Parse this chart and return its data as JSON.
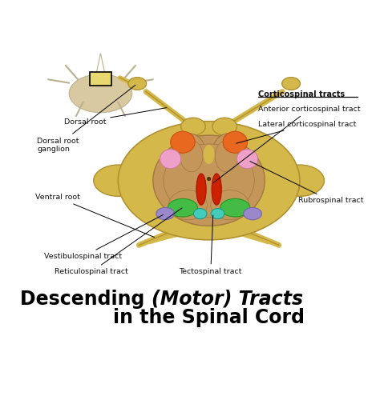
{
  "bg_color": "#ffffff",
  "title_line1": "Descending ",
  "title_motor": "(Motor)",
  "title_line1_end": " Tracts",
  "title_line2": "in the Spinal Cord",
  "title_fontsize": 20,
  "labels": {
    "corticospinal_bold": "Corticospinal tracts",
    "anterior_corticospinal": "Anterior corticospinal tract",
    "lateral_corticospinal": "Lateral corticospinal tract",
    "dorsal_root": "Dorsal root",
    "dorsal_root_ganglion": "Dorsal root\nganglion",
    "ventral_root": "Ventral root",
    "rubrospinal": "Rubrospinal tract",
    "vestibulospinal": "Vestibulospinal tract",
    "reticulospinal": "Reticulospinal tract",
    "tectospinal": "Tectospinal tract"
  },
  "colors": {
    "spinal_cord_outer": "#D4B94A",
    "spinal_cord_inner": "#C4965A",
    "outer_edge": "#B09030",
    "inner_edge": "#A07840",
    "orange_blob": "#E86820",
    "orange_edge": "#CC5010",
    "pink_blob": "#EFA0C8",
    "pink_edge": "#CC80A0",
    "red_column": "#CC2200",
    "red_edge": "#AA1000",
    "green_blob": "#44BB44",
    "green_edge": "#229922",
    "teal_blob": "#44CCBB",
    "teal_edge": "#229988",
    "purple_blob": "#9988CC",
    "purple_edge": "#7766AA",
    "vertebra_face": "#D9C9A0",
    "vertebra_edge": "#BBB090",
    "foramen_face": "#E8D870",
    "nerve_edge": "#B09030",
    "canal": "#553300",
    "label_color": "#111111"
  }
}
